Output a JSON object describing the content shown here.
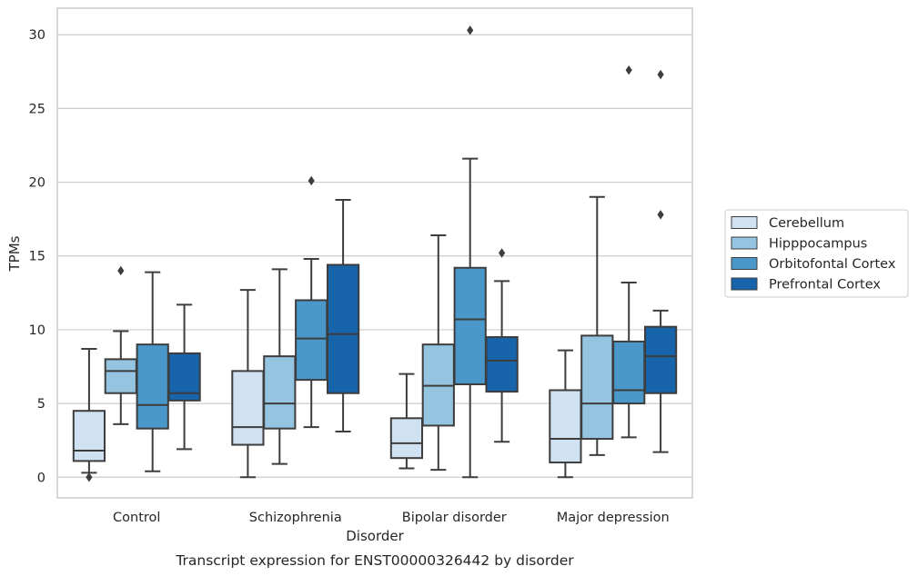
{
  "chart_data": {
    "type": "box",
    "caption": "Transcript expression for ENST00000326442 by disorder",
    "xlabel": "Disorder",
    "ylabel": "TPMs",
    "ylim": [
      -1.4,
      31.8
    ],
    "yticks": [
      0,
      5,
      10,
      15,
      20,
      25,
      30
    ],
    "grid": true,
    "legend_position": "right",
    "categories": [
      "Control",
      "Schizophrenia",
      "Bipolar disorder",
      "Major depression"
    ],
    "series": [
      {
        "name": "Cerebellum",
        "color": "#d0e1f2",
        "boxes": [
          {
            "whisker_low": 0.3,
            "q1": 1.1,
            "median": 1.8,
            "q3": 4.5,
            "whisker_high": 8.7,
            "outliers": [
              0.0
            ]
          },
          {
            "whisker_low": 0.0,
            "q1": 2.2,
            "median": 3.4,
            "q3": 7.2,
            "whisker_high": 12.7,
            "outliers": []
          },
          {
            "whisker_low": 0.6,
            "q1": 1.3,
            "median": 2.3,
            "q3": 4.0,
            "whisker_high": 7.0,
            "outliers": []
          },
          {
            "whisker_low": 0.0,
            "q1": 1.0,
            "median": 2.6,
            "q3": 5.9,
            "whisker_high": 8.6,
            "outliers": []
          }
        ]
      },
      {
        "name": "Hipppocampus",
        "color": "#94c4df",
        "boxes": [
          {
            "whisker_low": 3.6,
            "q1": 5.7,
            "median": 7.2,
            "q3": 8.0,
            "whisker_high": 9.9,
            "outliers": [
              14.0
            ]
          },
          {
            "whisker_low": 0.9,
            "q1": 3.3,
            "median": 5.0,
            "q3": 8.2,
            "whisker_high": 14.1,
            "outliers": []
          },
          {
            "whisker_low": 0.5,
            "q1": 3.5,
            "median": 6.2,
            "q3": 9.0,
            "whisker_high": 16.4,
            "outliers": []
          },
          {
            "whisker_low": 1.5,
            "q1": 2.6,
            "median": 5.0,
            "q3": 9.6,
            "whisker_high": 19.0,
            "outliers": []
          }
        ]
      },
      {
        "name": "Orbitofontal Cortex",
        "color": "#4a98c9",
        "boxes": [
          {
            "whisker_low": 0.4,
            "q1": 3.3,
            "median": 4.9,
            "q3": 9.0,
            "whisker_high": 13.9,
            "outliers": []
          },
          {
            "whisker_low": 3.4,
            "q1": 6.6,
            "median": 9.4,
            "q3": 12.0,
            "whisker_high": 14.8,
            "outliers": [
              20.1
            ]
          },
          {
            "whisker_low": 0.0,
            "q1": 6.3,
            "median": 10.7,
            "q3": 14.2,
            "whisker_high": 21.6,
            "outliers": [
              30.3
            ]
          },
          {
            "whisker_low": 2.7,
            "q1": 5.0,
            "median": 5.9,
            "q3": 9.2,
            "whisker_high": 13.2,
            "outliers": [
              27.6
            ]
          }
        ]
      },
      {
        "name": "Prefrontal Cortex",
        "color": "#1764ab",
        "boxes": [
          {
            "whisker_low": 1.9,
            "q1": 5.2,
            "median": 5.7,
            "q3": 8.4,
            "whisker_high": 11.7,
            "outliers": []
          },
          {
            "whisker_low": 3.1,
            "q1": 5.7,
            "median": 9.7,
            "q3": 14.4,
            "whisker_high": 18.8,
            "outliers": []
          },
          {
            "whisker_low": 2.4,
            "q1": 5.8,
            "median": 7.9,
            "q3": 9.5,
            "whisker_high": 13.3,
            "outliers": [
              15.2
            ]
          },
          {
            "whisker_low": 1.7,
            "q1": 5.7,
            "median": 8.2,
            "q3": 10.2,
            "whisker_high": 11.3,
            "outliers": [
              17.8,
              27.3
            ]
          }
        ]
      }
    ]
  }
}
